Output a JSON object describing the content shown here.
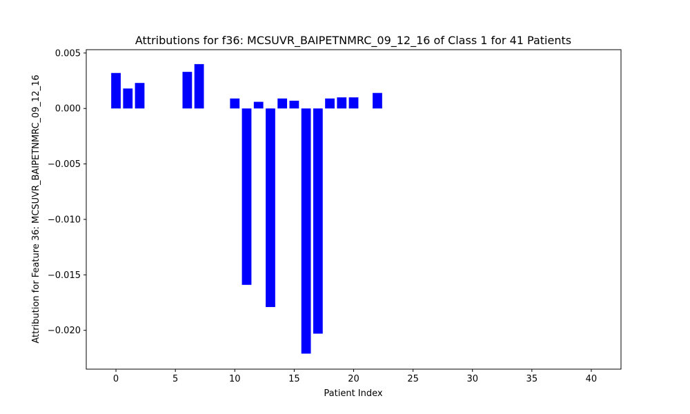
{
  "chart_data": {
    "type": "bar",
    "title": "Attributions for f36: MCSUVR_BAIPETNMRC_09_12_16 of Class 1 for 41 Patients",
    "xlabel": "Patient Index",
    "ylabel": "Attribution for Feature 36: MCSUVR_BAIPETNMRC_09_12_16",
    "xlim": [
      -2.5,
      42.5
    ],
    "ylim": [
      -0.0235,
      0.0053
    ],
    "x_ticks": [
      0,
      5,
      10,
      15,
      20,
      25,
      30,
      35,
      40
    ],
    "x_tick_labels": [
      "0",
      "5",
      "10",
      "15",
      "20",
      "25",
      "30",
      "35",
      "40"
    ],
    "y_ticks": [
      0.005,
      0.0,
      -0.005,
      -0.01,
      -0.015,
      -0.02
    ],
    "y_tick_labels": [
      "0.005",
      "0.000",
      "−0.005",
      "−0.010",
      "−0.015",
      "−0.020"
    ],
    "bar_color": "#0000ff",
    "grid": false,
    "x": [
      0,
      1,
      2,
      3,
      4,
      5,
      6,
      7,
      8,
      9,
      10,
      11,
      12,
      13,
      14,
      15,
      16,
      17,
      18,
      19,
      20,
      21,
      22,
      23,
      24,
      25,
      26,
      27,
      28,
      29,
      30,
      31,
      32,
      33,
      34,
      35,
      36,
      37,
      38,
      39,
      40
    ],
    "values": [
      0.0032,
      0.0018,
      0.0023,
      0,
      0,
      0,
      0.0033,
      0.004,
      0,
      0,
      0.0009,
      -0.0159,
      0.0006,
      -0.0179,
      0.0009,
      0.0007,
      -0.0221,
      -0.0203,
      0.0009,
      0.001,
      0.001,
      0,
      0.0014,
      0,
      0,
      0,
      0,
      0,
      0,
      0,
      0,
      0,
      0,
      0,
      0,
      0,
      0,
      0,
      0,
      0,
      0
    ]
  }
}
